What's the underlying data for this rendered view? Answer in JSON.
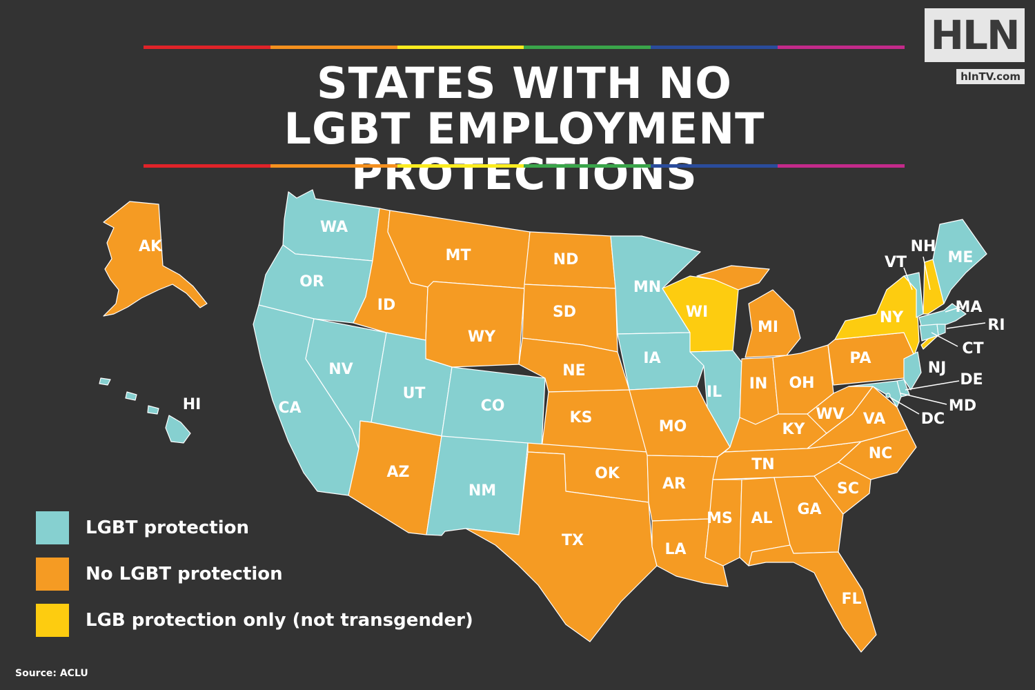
{
  "title": {
    "line1": "STATES WITH NO",
    "line2": "LGBT EMPLOYMENT PROTECTIONS"
  },
  "logo": {
    "text": "HLN",
    "url": "hlnTV.com"
  },
  "colors": {
    "protection": "#86d0d0",
    "no_protection": "#f59b23",
    "lgb_only": "#fdcc10",
    "background": "#333333",
    "rainbow": [
      "#e02329",
      "#f4901e",
      "#fbec1f",
      "#3aa54a",
      "#2a4c9c",
      "#c32a8a"
    ]
  },
  "legend": [
    {
      "label": "LGBT protection",
      "category": "protection"
    },
    {
      "label": "No LGBT protection",
      "category": "no_protection"
    },
    {
      "label": "LGB protection only (not transgender)",
      "category": "lgb_only"
    }
  ],
  "states": {
    "WA": "protection",
    "OR": "protection",
    "CA": "protection",
    "NV": "protection",
    "UT": "protection",
    "CO": "protection",
    "NM": "protection",
    "MN": "protection",
    "IA": "protection",
    "IL": "protection",
    "HI": "protection",
    "ME": "protection",
    "VT": "protection",
    "MA": "protection",
    "RI": "protection",
    "CT": "protection",
    "NJ": "protection",
    "DE": "protection",
    "MD": "protection",
    "DC": "protection",
    "AK": "no_protection",
    "ID": "no_protection",
    "MT": "no_protection",
    "WY": "no_protection",
    "ND": "no_protection",
    "SD": "no_protection",
    "NE": "no_protection",
    "KS": "no_protection",
    "OK": "no_protection",
    "TX": "no_protection",
    "AZ": "no_protection",
    "MO": "no_protection",
    "AR": "no_protection",
    "LA": "no_protection",
    "MS": "no_protection",
    "AL": "no_protection",
    "TN": "no_protection",
    "KY": "no_protection",
    "IN": "no_protection",
    "OH": "no_protection",
    "MI": "no_protection",
    "WV": "no_protection",
    "VA": "no_protection",
    "NC": "no_protection",
    "SC": "no_protection",
    "GA": "no_protection",
    "FL": "no_protection",
    "PA": "no_protection",
    "WI": "lgb_only",
    "NY": "lgb_only",
    "NH": "lgb_only"
  },
  "source": "Source: ACLU"
}
